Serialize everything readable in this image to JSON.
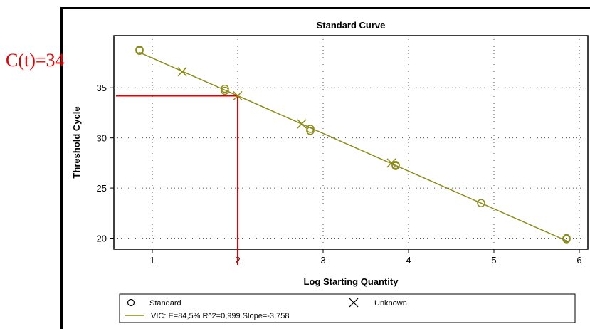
{
  "annotation_text": "C(t)=34",
  "colors": {
    "series": "#8c8c1a",
    "annotation": "#e00000",
    "grid": "#555555"
  },
  "chart_data": {
    "type": "scatter",
    "title": "Standard Curve",
    "xlabel": "Log Starting Quantity",
    "ylabel": "Threshold Cycle",
    "xlim": [
      0.55,
      6.1
    ],
    "ylim": [
      18.9,
      40.2
    ],
    "xticks": [
      1,
      2,
      3,
      4,
      5,
      6
    ],
    "yticks": [
      20,
      25,
      30,
      35
    ],
    "grid": true,
    "legend_position": "bottom",
    "series": [
      {
        "name": "Standard",
        "marker": "circle",
        "points": [
          [
            0.85,
            38.7
          ],
          [
            0.85,
            38.8
          ],
          [
            1.85,
            34.9
          ],
          [
            1.85,
            34.7
          ],
          [
            2.85,
            30.9
          ],
          [
            2.85,
            30.7
          ],
          [
            3.85,
            27.3
          ],
          [
            3.85,
            27.2
          ],
          [
            4.85,
            23.5
          ],
          [
            5.85,
            19.9
          ],
          [
            5.85,
            20.0
          ]
        ]
      },
      {
        "name": "Unknown",
        "marker": "x",
        "points": [
          [
            1.35,
            36.6
          ],
          [
            2.0,
            34.2
          ],
          [
            2.75,
            31.4
          ],
          [
            3.8,
            27.5
          ]
        ]
      }
    ],
    "fit": {
      "label": "VIC: E=84,5% R^2=0,999 Slope=-3,758",
      "slope": -3.758,
      "intercept": 41.72,
      "x_range": [
        0.85,
        5.85
      ]
    },
    "annotation_lines": {
      "x": 2.0,
      "y": 34.2
    }
  }
}
